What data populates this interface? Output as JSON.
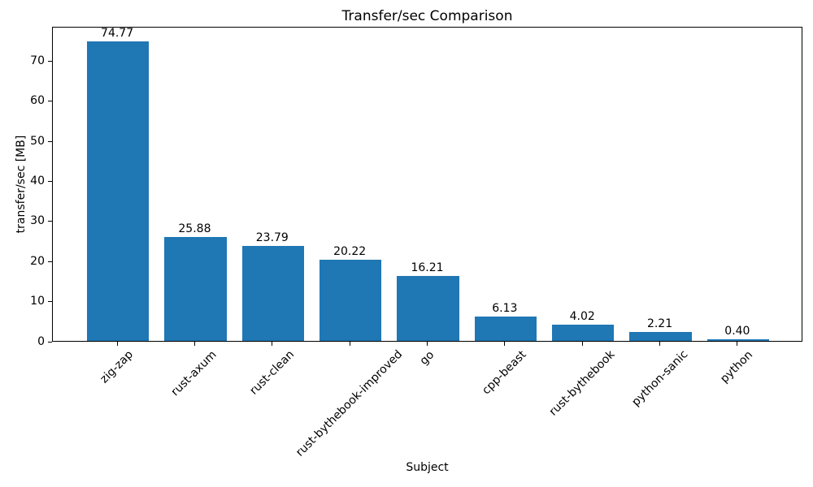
{
  "chart_data": {
    "type": "bar",
    "title": "Transfer/sec Comparison",
    "xlabel": "Subject",
    "ylabel": "transfer/sec [MB]",
    "categories": [
      "zig-zap",
      "rust-axum",
      "rust-clean",
      "rust-bythebook-improved",
      "go",
      "cpp-beast",
      "rust-bythebook",
      "python-sanic",
      "python"
    ],
    "values": [
      74.77,
      25.88,
      23.79,
      20.22,
      16.21,
      6.13,
      4.02,
      2.21,
      0.4
    ],
    "value_labels": [
      "74.77",
      "25.88",
      "23.79",
      "20.22",
      "16.21",
      "6.13",
      "4.02",
      "2.21",
      "0.40"
    ],
    "yticks": [
      0,
      10,
      20,
      30,
      40,
      50,
      60,
      70
    ],
    "ylim": [
      0,
      78.6
    ],
    "bar_color": "#1f77b4",
    "grid": false,
    "x_tick_rotation_deg": 45,
    "legend_position": "none"
  }
}
